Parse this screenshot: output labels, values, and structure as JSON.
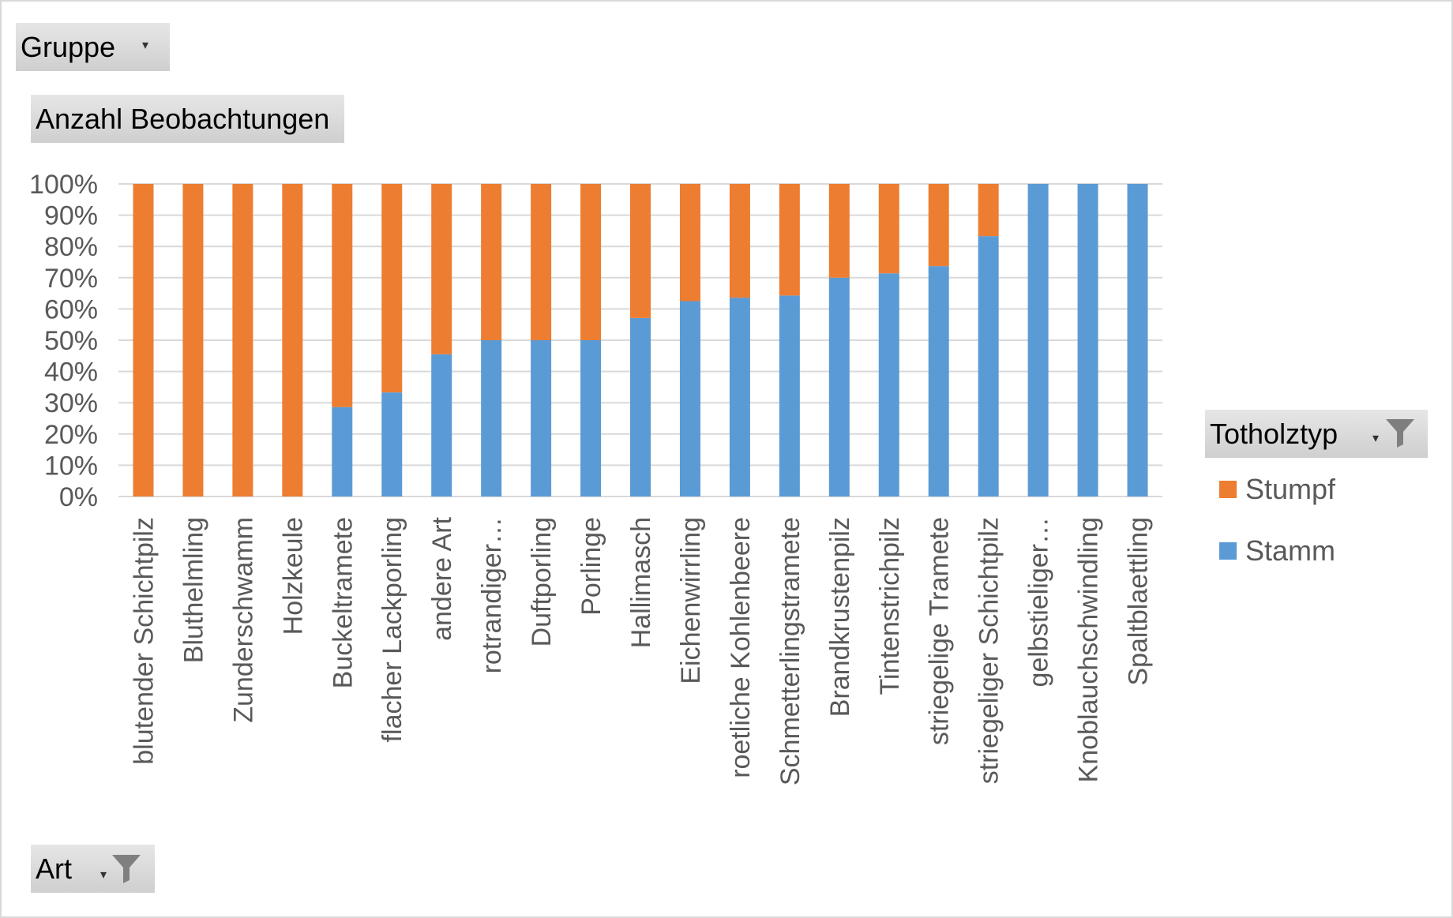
{
  "pivot": {
    "report_filter": {
      "label": "Gruppe"
    },
    "values_field": {
      "label": "Anzahl Beobachtungen"
    },
    "axis_field": {
      "label": "Art"
    },
    "legend_field": {
      "label": "Totholztyp"
    }
  },
  "colors": {
    "stumpf": "#ED7D31",
    "stamm": "#5B9BD5",
    "grid": "#d9d9d9"
  },
  "chart_data": {
    "type": "bar",
    "stacked": true,
    "percent": true,
    "y_ticks": [
      "0%",
      "10%",
      "20%",
      "30%",
      "40%",
      "50%",
      "60%",
      "70%",
      "80%",
      "90%",
      "100%"
    ],
    "ylim": [
      0,
      100
    ],
    "categories": [
      "blutender Schichtpilz",
      "Bluthelmling",
      "Zunderschwamm",
      "Holzkeule",
      "Buckeltramete",
      "flacher Lackporling",
      "andere Art",
      "rotrandiger…",
      "Duftporling",
      "Porlinge",
      "Hallimasch",
      "Eichenwirrling",
      "roetliche Kohlenbeere",
      "Schmetterlingstramete",
      "Brandkrustenpilz",
      "Tintenstrichpilz",
      "striegelige Tramete",
      "striegeliger Schichtpilz",
      "gelbstieliger…",
      "Knoblauchschwindling",
      "Spaltblaettling"
    ],
    "series": [
      {
        "name": "Stamm",
        "color": "#5B9BD5",
        "values": [
          0,
          0,
          0,
          0,
          28.6,
          33.3,
          45.5,
          50,
          50,
          50,
          57.1,
          62.5,
          63.6,
          64.3,
          70,
          71.4,
          73.7,
          83.3,
          100,
          100,
          100
        ]
      },
      {
        "name": "Stumpf",
        "color": "#ED7D31",
        "values": [
          100,
          100,
          100,
          100,
          71.4,
          66.7,
          54.5,
          50,
          50,
          50,
          42.9,
          37.5,
          36.4,
          35.7,
          30,
          28.6,
          26.3,
          16.7,
          0,
          0,
          0
        ]
      }
    ],
    "legend": [
      "Stumpf",
      "Stamm"
    ],
    "legend_position": "right",
    "grid": true
  }
}
